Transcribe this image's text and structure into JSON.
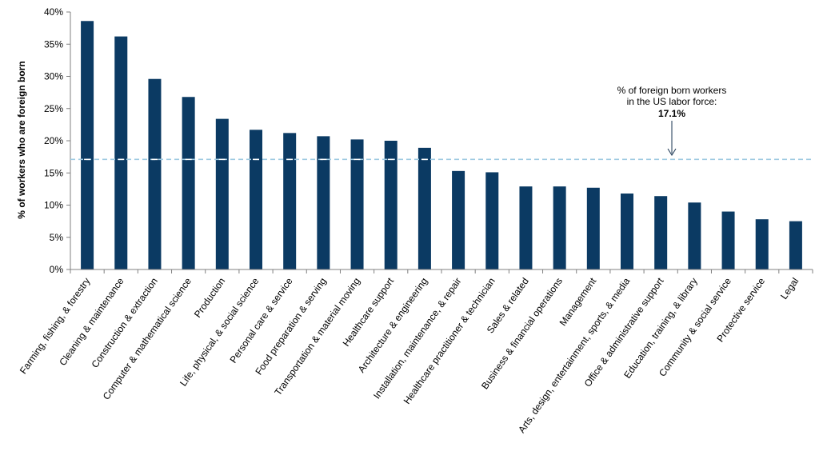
{
  "chart_data": {
    "type": "bar",
    "title": "",
    "xlabel": "",
    "ylabel": "%  of workers who are foreign born",
    "ylim": [
      0,
      40
    ],
    "yticks": [
      "0%",
      "5%",
      "10%",
      "15%",
      "20%",
      "25%",
      "30%",
      "35%",
      "40%"
    ],
    "grid": false,
    "legend": "none",
    "categories": [
      "Farming, fishing, & forestry",
      "Cleaning & maintenance",
      "Construction & extraction",
      "Computer & mathematical science",
      "Production",
      "Life, physical, & social science",
      "Personal care & service",
      "Food preparation & serving",
      "Transportation & material moving",
      "Healthcare support",
      "Architecture & engineering",
      "Installation, maintenance, & repair",
      "Healthcare practitioner & technician",
      "Sales & related",
      "Business & financial operations",
      "Management",
      "Arts, design, entertainment, sports, & media",
      "Office & administrative support",
      "Education, training, & library",
      "Community & social service",
      "Protective service",
      "Legal"
    ],
    "values": [
      38.6,
      36.2,
      29.6,
      26.8,
      23.4,
      21.7,
      21.2,
      20.7,
      20.2,
      20.0,
      18.9,
      15.3,
      15.1,
      12.9,
      12.9,
      12.7,
      11.8,
      11.4,
      10.4,
      9.0,
      7.8,
      7.5
    ],
    "reference_line": {
      "value": 17.1,
      "label_lines": [
        "% of foreign  born workers",
        "in the US labor force:"
      ],
      "label_value": "17.1%"
    },
    "colors": {
      "bar": "#0b3a63",
      "reference_line": "#9ecae1",
      "axis": "#808080"
    }
  }
}
